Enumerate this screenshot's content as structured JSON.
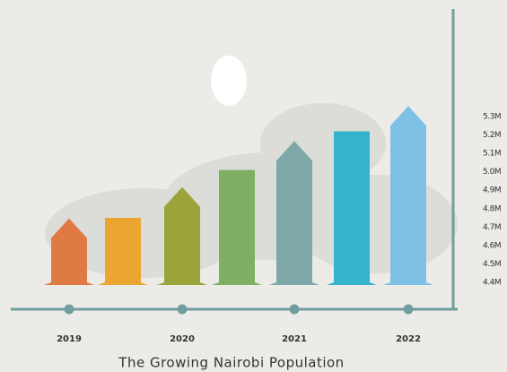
{
  "chart_data": {
    "type": "bar",
    "title": "The Growing Nairobi Population",
    "categories": [
      "2019",
      null,
      "2020",
      null,
      "2021",
      null,
      "2022"
    ],
    "series": [
      {
        "name": null,
        "colors": [
          "#e07a45",
          "#eaa631",
          "#9aa43a",
          "#7faf63",
          "#7ea8a8",
          "#35b3cc",
          "#7ec0e6"
        ],
        "values": [
          4.64,
          4.75,
          4.81,
          5.01,
          5.06,
          5.22,
          5.25
        ]
      }
    ],
    "ylim": [
      4.4,
      5.3
    ],
    "yticks": [
      {
        "value": 4.4,
        "label": "4.4M"
      },
      {
        "value": 4.5,
        "label": "4.5M"
      },
      {
        "value": 4.6,
        "label": "4.6M"
      },
      {
        "value": 4.7,
        "label": "4.7M"
      },
      {
        "value": 4.8,
        "label": "4.8M"
      },
      {
        "value": 4.9,
        "label": "4.9M"
      },
      {
        "value": 5.0,
        "label": "5.0M"
      },
      {
        "value": 5.1,
        "label": "5.1M"
      },
      {
        "value": 5.2,
        "label": "5.2M"
      },
      {
        "value": 5.3,
        "label": "5.3M"
      }
    ],
    "axis_color": "#6f9e9c"
  }
}
